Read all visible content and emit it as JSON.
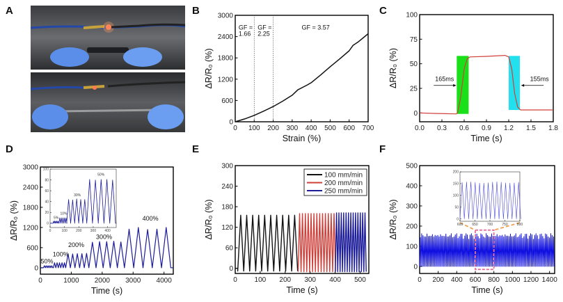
{
  "panels": [
    "A",
    "B",
    "C",
    "D",
    "E",
    "F"
  ],
  "colors": {
    "black": "#111111",
    "red": "#d0403a",
    "navy": "#1c1c9a",
    "blue": "#1010e0",
    "green": "#19e019",
    "cyan": "#22e0ee",
    "orange": "#f0a050",
    "pink": "#e8709a"
  },
  "chart_data": [
    {
      "panel": "B",
      "type": "line",
      "xlabel": "Strain (%)",
      "ylabel": "ΔR/R₀ (%)",
      "xlim": [
        0,
        700
      ],
      "ylim": [
        0,
        3000
      ],
      "xticks": [
        "0",
        "100",
        "200",
        "300",
        "400",
        "500",
        "600",
        "700"
      ],
      "yticks": [
        "0",
        "600",
        "1200",
        "1800",
        "2400",
        "3000"
      ],
      "x": [
        0,
        50,
        100,
        150,
        200,
        250,
        300,
        330,
        380,
        400,
        450,
        500,
        550,
        600,
        620,
        650,
        700
      ],
      "y": [
        0,
        80,
        180,
        300,
        430,
        580,
        750,
        900,
        1040,
        1100,
        1320,
        1550,
        1770,
        2000,
        2150,
        2260,
        2480
      ],
      "vlines": [
        100,
        200
      ],
      "annotations": [
        {
          "text": "GF =",
          "x": 18,
          "y": 2600
        },
        {
          "text": "1.66",
          "x": 18,
          "y": 2420
        },
        {
          "text": "GF =",
          "x": 118,
          "y": 2600
        },
        {
          "text": "2.25",
          "x": 118,
          "y": 2420
        },
        {
          "text": "GF = 3.57",
          "x": 350,
          "y": 2600
        }
      ]
    },
    {
      "panel": "C",
      "type": "line",
      "xlabel": "Time (s)",
      "ylabel": "ΔR/R₀ (%)",
      "xlim": [
        0,
        1.8
      ],
      "ylim": [
        -9,
        100
      ],
      "xticks": [
        "0.0",
        "0.3",
        "0.6",
        "0.9",
        "1.2",
        "1.5",
        "1.8"
      ],
      "yticks": [
        "0",
        "25",
        "50",
        "75",
        "100"
      ],
      "x": [
        0,
        0.2,
        0.49,
        0.51,
        0.55,
        0.6,
        0.64,
        0.68,
        0.9,
        1.15,
        1.2,
        1.24,
        1.28,
        1.32,
        1.36,
        1.5,
        1.8
      ],
      "y": [
        0,
        -0.5,
        -1,
        0,
        15,
        45,
        55,
        57,
        57.5,
        58.5,
        57,
        45,
        20,
        6,
        3,
        3,
        3
      ],
      "regions": [
        {
          "x": [
            0.5,
            0.66
          ],
          "y": [
            -1,
            58
          ],
          "color": "#19e019"
        },
        {
          "x": [
            1.2,
            1.35
          ],
          "y": [
            3,
            58
          ],
          "color": "#22e0ee"
        }
      ],
      "annotations": [
        {
          "text": "165ms",
          "x": 0.19,
          "y": 31,
          "arrow_to": 0.49
        },
        {
          "text": "155ms",
          "x": 1.45,
          "y": 31,
          "arrow_to": 1.37
        }
      ]
    },
    {
      "panel": "D",
      "type": "line",
      "xlabel": "Time (s)",
      "ylabel": "ΔR/R₀ (%)",
      "xlim": [
        0,
        4300
      ],
      "ylim": [
        -190,
        3000
      ],
      "xticks": [
        "0",
        "1000",
        "2000",
        "3000",
        "4000"
      ],
      "yticks": [
        "0",
        "600",
        "1200",
        "1800",
        "2400",
        "3000"
      ],
      "segments": [
        {
          "label": "50%",
          "start": 100,
          "period": 60,
          "cycles": 5,
          "peaks": [
            60,
            60,
            60,
            60,
            60
          ]
        },
        {
          "label": "100%",
          "start": 420,
          "period": 80,
          "cycles": 5,
          "peaks": [
            150,
            150,
            150,
            150,
            150
          ]
        },
        {
          "label": "200%",
          "start": 820,
          "period": 150,
          "cycles": 5,
          "peaks": [
            420,
            410,
            420,
            420,
            430
          ]
        },
        {
          "label": "300%",
          "start": 1570,
          "period": 230,
          "cycles": 5,
          "peaks": [
            760,
            780,
            780,
            790,
            770
          ]
        },
        {
          "label": "400%",
          "start": 2720,
          "period": 300,
          "cycles": 5,
          "peaks": [
            1150,
            1200,
            1140,
            1150,
            1200
          ]
        }
      ],
      "end": 4300,
      "annotations": [
        {
          "text": "50%",
          "x": 100,
          "y": 190
        },
        {
          "text": "100%",
          "x": 400,
          "y": 340
        },
        {
          "text": "200%",
          "x": 900,
          "y": 620
        },
        {
          "text": "300%",
          "x": 1800,
          "y": 980
        },
        {
          "text": "400%",
          "x": 3300,
          "y": 1400
        }
      ]
    },
    {
      "panel": "D-inset",
      "type": "line",
      "xlim": [
        0,
        460
      ],
      "ylim": [
        -8,
        100
      ],
      "xticks": [
        "0",
        "100",
        "200",
        "300",
        "400"
      ],
      "yticks": [
        "0",
        "20",
        "40",
        "60",
        "80",
        "100"
      ],
      "segments": [
        {
          "label": "5%",
          "start": 20,
          "period": 8,
          "cycles": 5,
          "peaks": [
            4,
            4,
            4,
            4,
            4
          ]
        },
        {
          "label": "10%",
          "start": 62,
          "period": 11,
          "cycles": 5,
          "peaks": [
            10,
            10,
            10,
            10,
            10
          ]
        },
        {
          "label": "30%",
          "start": 115,
          "period": 28,
          "cycles": 5,
          "peaks": [
            44,
            43,
            45,
            44,
            44
          ]
        },
        {
          "label": "50%",
          "start": 255,
          "period": 40,
          "cycles": 5,
          "peaks": [
            81,
            80,
            81,
            81,
            80
          ]
        }
      ],
      "end": 460,
      "annotations": [
        {
          "text": "5%",
          "x": 25,
          "y": 8
        },
        {
          "text": "10%",
          "x": 70,
          "y": 16
        },
        {
          "text": "30%",
          "x": 165,
          "y": 50
        },
        {
          "text": "50%",
          "x": 330,
          "y": 88
        }
      ]
    },
    {
      "panel": "E",
      "type": "line",
      "xlabel": "Time (s)",
      "ylabel": "ΔR/R₀ (%)",
      "xlim": [
        0,
        535
      ],
      "ylim": [
        -15,
        300
      ],
      "xticks": [
        "0",
        "100",
        "200",
        "300",
        "400",
        "500"
      ],
      "yticks": [
        "0",
        "60",
        "120",
        "180",
        "240",
        "300"
      ],
      "legend": "top-right",
      "series": [
        {
          "name": "100 mm/min",
          "color": "#111111",
          "start": 10,
          "period": 24,
          "cycles": 10,
          "peak": 155,
          "min": -8
        },
        {
          "name": "200 mm/min",
          "color": "#d0403a",
          "start": 252,
          "period": 11.5,
          "cycles": 13,
          "peak": 160,
          "min": -10
        },
        {
          "name": "250 mm/min",
          "color": "#1c1c9a",
          "start": 401,
          "period": 9.5,
          "cycles": 13,
          "peak": 162,
          "min": -10
        }
      ]
    },
    {
      "panel": "F",
      "type": "line",
      "xlabel": "Time (s)",
      "ylabel": "ΔR/R₀ (%)",
      "xlim": [
        0,
        1455
      ],
      "ylim": [
        -35,
        500
      ],
      "xticks": [
        "0",
        "200",
        "400",
        "600",
        "800",
        "1000",
        "1200",
        "1400"
      ],
      "yticks": [
        "0",
        "100",
        "200",
        "300",
        "400",
        "500"
      ],
      "signal": {
        "start": 0,
        "end": 1450,
        "period": 14.5,
        "peak": 155,
        "min": 0
      },
      "zoom_region": {
        "x": [
          600,
          800
        ],
        "y": [
          -15,
          180
        ]
      }
    },
    {
      "panel": "F-inset",
      "type": "line",
      "xlim": [
        600,
        800
      ],
      "ylim": [
        -10,
        200
      ],
      "xticks": [
        "600",
        "650",
        "700",
        "750",
        "800"
      ],
      "yticks": [
        "0",
        "50",
        "100",
        "150",
        "200"
      ],
      "signal": {
        "start": 600,
        "end": 800,
        "period": 14.5,
        "peak": 155,
        "min": 0
      }
    }
  ]
}
